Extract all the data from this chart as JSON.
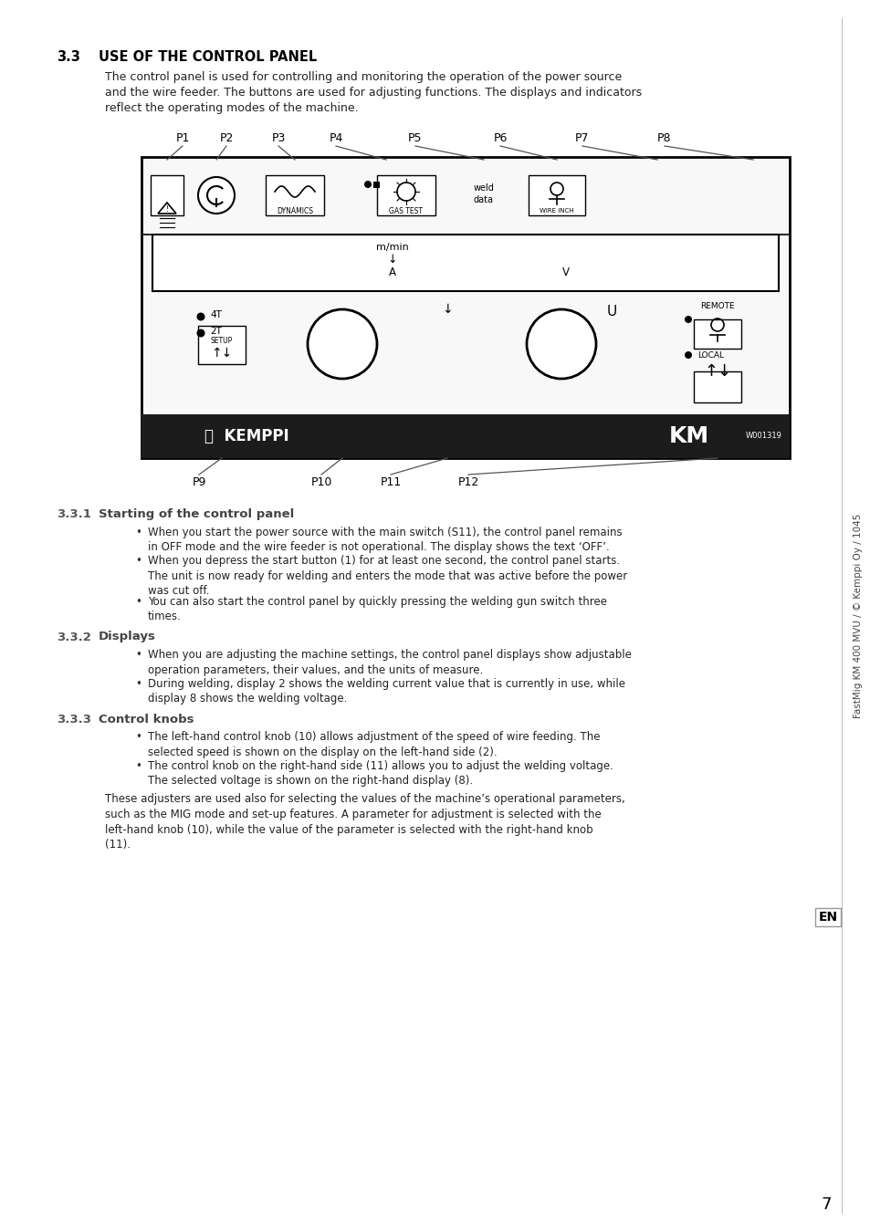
{
  "page_bg": "#ffffff",
  "text_color": "#000000",
  "section_number": "3.3",
  "section_title": "USE OF THE CONTROL PANEL",
  "intro_text": "The control panel is used for controlling and monitoring the operation of the power source\nand the wire feeder. The buttons are used for adjusting functions. The displays and indicators\nreflect the operating modes of the machine.",
  "sidebar_text": "FastMig KM 400 MVU / © Kemppi Oy / 1045",
  "page_number": "7",
  "en_label": "EN",
  "subsection_331": "3.3.1",
  "subsection_331_title": "Starting of the control panel",
  "bullets_331": [
    "When you start the power source with the main switch (S11), the control panel remains\nin OFF mode and the wire feeder is not operational. The display shows the text ‘OFF’.",
    "When you depress the start button (1) for at least one second, the control panel starts.\nThe unit is now ready for welding and enters the mode that was active before the power\nwas cut off.",
    "You can also start the control panel by quickly pressing the welding gun switch three\ntimes."
  ],
  "subsection_332": "3.3.2",
  "subsection_332_title": "Displays",
  "bullets_332": [
    "When you are adjusting the machine settings, the control panel displays show adjustable\noperation parameters, their values, and the units of measure.",
    "During welding, display 2 shows the welding current value that is currently in use, while\ndisplay 8 shows the welding voltage."
  ],
  "subsection_333": "3.3.3",
  "subsection_333_title": "Control knobs",
  "bullets_333": [
    "The left-hand control knob (10) allows adjustment of the speed of wire feeding. The\nselected speed is shown on the display on the left-hand side (2).",
    "The control knob on the right-hand side (11) allows you to adjust the welding voltage.\nThe selected voltage is shown on the right-hand display (8)."
  ],
  "closing_text": "These adjusters are used also for selecting the values of the machine’s operational parameters,\nsuch as the MIG mode and set-up features. A parameter for adjustment is selected with the\nleft-hand knob (10), while the value of the parameter is selected with the right-hand knob\n(11)."
}
